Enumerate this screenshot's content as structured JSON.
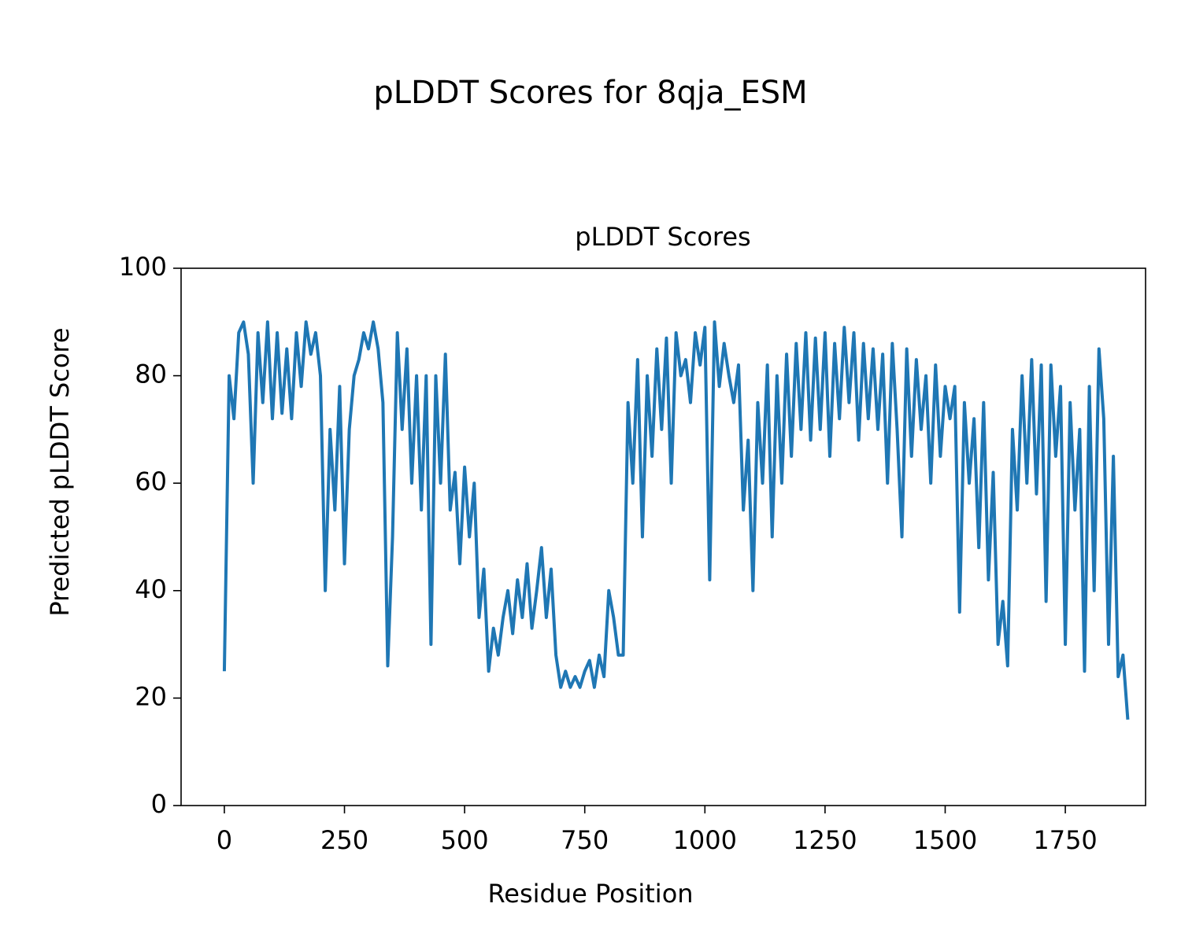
{
  "chart_data": {
    "type": "line",
    "suptitle": "pLDDT Scores for 8qja_ESM",
    "title": "pLDDT Scores",
    "xlabel": "Residue Position",
    "ylabel": "Predicted pLDDT Score",
    "xlim": [
      -90,
      1917
    ],
    "ylim": [
      0,
      100
    ],
    "xticks": [
      0,
      250,
      500,
      750,
      1000,
      1250,
      1500,
      1750
    ],
    "yticks": [
      0,
      20,
      40,
      60,
      80,
      100
    ],
    "grid": false,
    "x": [
      0,
      10,
      20,
      30,
      40,
      50,
      60,
      70,
      80,
      90,
      100,
      110,
      120,
      130,
      140,
      150,
      160,
      170,
      180,
      190,
      200,
      210,
      220,
      230,
      240,
      250,
      260,
      270,
      280,
      290,
      300,
      310,
      320,
      330,
      340,
      350,
      360,
      370,
      380,
      390,
      400,
      410,
      420,
      430,
      440,
      450,
      460,
      470,
      480,
      490,
      500,
      510,
      520,
      530,
      540,
      550,
      560,
      570,
      580,
      590,
      600,
      610,
      620,
      630,
      640,
      650,
      660,
      670,
      680,
      690,
      700,
      710,
      720,
      730,
      740,
      750,
      760,
      770,
      780,
      790,
      800,
      810,
      820,
      830,
      840,
      850,
      860,
      870,
      880,
      890,
      900,
      910,
      920,
      930,
      940,
      950,
      960,
      970,
      980,
      990,
      1000,
      1010,
      1020,
      1030,
      1040,
      1050,
      1060,
      1070,
      1080,
      1090,
      1100,
      1110,
      1120,
      1130,
      1140,
      1150,
      1160,
      1170,
      1180,
      1190,
      1200,
      1210,
      1220,
      1230,
      1240,
      1250,
      1260,
      1270,
      1280,
      1290,
      1300,
      1310,
      1320,
      1330,
      1340,
      1350,
      1360,
      1370,
      1380,
      1390,
      1400,
      1410,
      1420,
      1430,
      1440,
      1450,
      1460,
      1470,
      1480,
      1490,
      1500,
      1510,
      1520,
      1530,
      1540,
      1550,
      1560,
      1570,
      1580,
      1590,
      1600,
      1610,
      1620,
      1630,
      1640,
      1650,
      1660,
      1670,
      1680,
      1690,
      1700,
      1710,
      1720,
      1730,
      1740,
      1750,
      1760,
      1770,
      1780,
      1790,
      1800,
      1810,
      1820,
      1830,
      1840,
      1850,
      1860,
      1870,
      1880
    ],
    "series": [
      {
        "name": "pLDDT",
        "color": "#1f77b4",
        "values": [
          25,
          80,
          72,
          88,
          90,
          84,
          60,
          88,
          75,
          90,
          72,
          88,
          73,
          85,
          72,
          88,
          78,
          90,
          84,
          88,
          80,
          40,
          70,
          55,
          78,
          45,
          70,
          80,
          83,
          88,
          85,
          90,
          85,
          75,
          26,
          50,
          88,
          70,
          85,
          60,
          80,
          55,
          80,
          30,
          80,
          60,
          84,
          55,
          62,
          45,
          63,
          50,
          60,
          35,
          44,
          25,
          33,
          28,
          35,
          40,
          32,
          42,
          35,
          45,
          33,
          40,
          48,
          35,
          44,
          28,
          22,
          25,
          22,
          24,
          22,
          25,
          27,
          22,
          28,
          24,
          40,
          35,
          28,
          28,
          75,
          60,
          83,
          50,
          80,
          65,
          85,
          70,
          87,
          60,
          88,
          80,
          83,
          75,
          88,
          82,
          89,
          42,
          90,
          78,
          86,
          80,
          75,
          82,
          55,
          68,
          40,
          75,
          60,
          82,
          50,
          80,
          60,
          84,
          65,
          86,
          70,
          88,
          68,
          87,
          70,
          88,
          65,
          86,
          72,
          89,
          75,
          88,
          68,
          86,
          72,
          85,
          70,
          84,
          60,
          86,
          70,
          50,
          85,
          65,
          83,
          70,
          80,
          60,
          82,
          65,
          78,
          72,
          78,
          36,
          75,
          60,
          72,
          48,
          75,
          42,
          62,
          30,
          38,
          26,
          70,
          55,
          80,
          60,
          83,
          58,
          82,
          38,
          82,
          65,
          78,
          30,
          75,
          55,
          70,
          25,
          78,
          40,
          85,
          72,
          30,
          65,
          24,
          28,
          16
        ]
      }
    ]
  }
}
